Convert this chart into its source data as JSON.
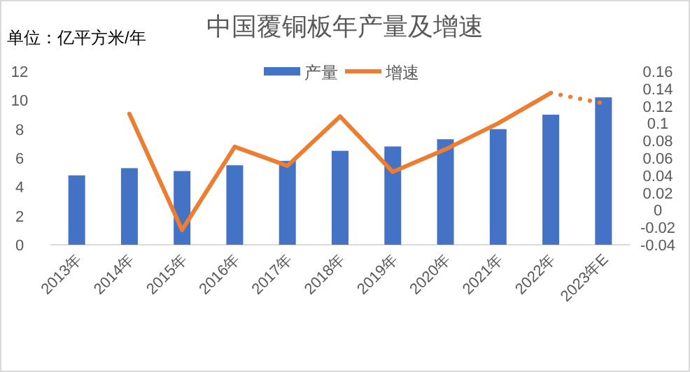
{
  "chart_data": {
    "type": "bar",
    "title": "中国覆铜板年产量及增速",
    "annotations": [
      "单位：亿平方米/年"
    ],
    "categories": [
      "2013年",
      "2014年",
      "2015年",
      "2016年",
      "2017年",
      "2018年",
      "2019年",
      "2020年",
      "2021年",
      "2022年",
      "2023年E"
    ],
    "series": [
      {
        "name": "产量",
        "color": "#4472c4",
        "values": [
          4.8,
          5.3,
          5.1,
          5.5,
          5.8,
          6.5,
          6.8,
          7.3,
          8.0,
          9.0,
          10.2
        ]
      },
      {
        "name": "增速",
        "type": "line",
        "axis": "y2",
        "color": "#ed7d31",
        "line_style": "solid",
        "values": [
          null,
          0.111,
          -0.023,
          0.073,
          0.051,
          0.108,
          0.044,
          0.07,
          0.1,
          0.135,
          null
        ]
      },
      {
        "type": "line",
        "axis": "y2",
        "color": "#ed7d31",
        "line_style": "dotted",
        "values": [
          null,
          null,
          null,
          null,
          null,
          null,
          null,
          null,
          null,
          0.135,
          0.123
        ]
      }
    ],
    "ylim": [
      0,
      12
    ],
    "yticks": [
      0,
      2,
      4,
      6,
      8,
      10,
      12
    ],
    "y2lim": [
      -0.04,
      0.16
    ],
    "y2ticks": [
      -0.04,
      -0.02,
      0,
      0.02,
      0.04,
      0.06,
      0.08,
      0.1,
      0.12,
      0.14,
      0.16
    ],
    "legend": "top",
    "grid": false
  }
}
